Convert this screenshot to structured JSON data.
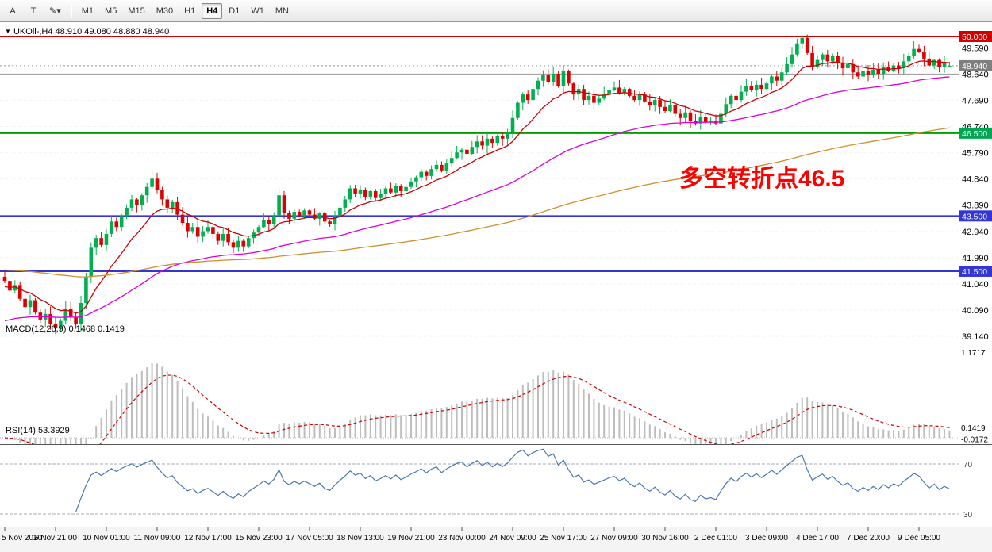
{
  "toolbar": {
    "left_buttons": [
      {
        "label": "A"
      },
      {
        "label": "T"
      },
      {
        "label": "✎▾"
      }
    ],
    "timeframes": [
      {
        "label": "M1",
        "active": false
      },
      {
        "label": "M5",
        "active": false
      },
      {
        "label": "M15",
        "active": false
      },
      {
        "label": "M30",
        "active": false
      },
      {
        "label": "H1",
        "active": false
      },
      {
        "label": "H4",
        "active": true
      },
      {
        "label": "D1",
        "active": false
      },
      {
        "label": "W1",
        "active": false
      },
      {
        "label": "MN",
        "active": false
      }
    ]
  },
  "quote": {
    "display": "UKOil-,H4 48.910 49.080 48.880 48.940"
  },
  "indicators": {
    "macd_label": "MACD(12,26,9) 0.1468 0.1419",
    "rsi_label": "RSI(14) 53.3929"
  },
  "annotation": {
    "text": "多空转折点46.5",
    "color": "#ff0000"
  },
  "price_scale": {
    "labels": [
      49.59,
      48.64,
      47.69,
      46.74,
      45.79,
      44.84,
      43.89,
      42.94,
      41.99,
      41.04,
      40.09,
      39.14
    ],
    "badges": [
      {
        "value": "50.000",
        "price": 50.0,
        "color": "#d40000"
      },
      {
        "value": "48.940",
        "price": 48.94,
        "color": "#7f7f7f"
      },
      {
        "value": "46.500",
        "price": 46.5,
        "color": "#00a651"
      },
      {
        "value": "43.500",
        "price": 43.5,
        "color": "#3535d6"
      },
      {
        "value": "41.500",
        "price": 41.5,
        "color": "#3535d6"
      }
    ]
  },
  "macd_scale": [
    {
      "label": "1.1717",
      "value": 1.1717
    },
    {
      "label": "0.1419",
      "value": 0.1419
    },
    {
      "label": "-0.0172",
      "value": -0.0172
    }
  ],
  "rsi_scale": [
    {
      "label": "70",
      "value": 70
    },
    {
      "label": "30",
      "value": 30
    }
  ],
  "time_scale": [
    "5 Nov 2020",
    "6 Nov 21:00",
    "10 Nov 01:00",
    "11 Nov 09:00",
    "12 Nov 17:00",
    "15 Nov 23:00",
    "17 Nov 05:00",
    "18 Nov 13:00",
    "19 Nov 21:00",
    "23 Nov 00:00",
    "24 Nov 09:00",
    "25 Nov 17:00",
    "27 Nov 09:00",
    "30 Nov 16:00",
    "2 Dec 01:00",
    "3 Dec 09:00",
    "4 Dec 17:00",
    "7 Dec 20:00",
    "9 Dec 05:00"
  ],
  "colors": {
    "candle_up": "#00B050",
    "candle_down": "#DC0000",
    "macd_hist": "#BDBDBD",
    "macd_signal": "#CC0000",
    "rsi_line": "#4A78B0",
    "grid": "#ededed"
  },
  "chart_data": {
    "type": "candlestick+indicators",
    "symbol": "UKOil-",
    "timeframe": "H4",
    "ohlc_current": {
      "open": 48.91,
      "high": 49.08,
      "low": 48.88,
      "close": 48.94
    },
    "price_range": [
      39.115,
      50.0
    ],
    "first_open": 41.3,
    "closes": [
      41.15,
      40.8,
      41.0,
      40.5,
      40.2,
      40.45,
      40.0,
      39.75,
      39.95,
      39.6,
      39.45,
      39.7,
      40.15,
      39.85,
      39.6,
      40.35,
      41.3,
      42.35,
      42.7,
      42.45,
      42.85,
      43.3,
      43.1,
      43.5,
      43.8,
      44.1,
      43.9,
      44.25,
      44.55,
      44.85,
      44.45,
      44.1,
      43.8,
      44.0,
      43.55,
      43.25,
      42.95,
      43.1,
      42.75,
      42.95,
      43.1,
      42.85,
      42.6,
      42.85,
      42.55,
      42.35,
      42.6,
      42.4,
      42.7,
      42.9,
      43.1,
      43.35,
      43.2,
      43.5,
      44.25,
      43.6,
      43.4,
      43.65,
      43.5,
      43.7,
      43.55,
      43.4,
      43.6,
      43.3,
      43.2,
      43.5,
      43.8,
      44.1,
      44.5,
      44.3,
      44.45,
      44.2,
      44.4,
      44.15,
      44.3,
      44.5,
      44.35,
      44.6,
      44.4,
      44.55,
      44.75,
      44.9,
      45.1,
      44.95,
      45.2,
      45.35,
      45.15,
      45.4,
      45.6,
      45.8,
      45.9,
      45.75,
      46.0,
      46.2,
      46.05,
      46.3,
      46.15,
      46.4,
      46.3,
      46.55,
      47.05,
      47.6,
      47.9,
      47.7,
      48.1,
      48.4,
      48.6,
      48.35,
      48.65,
      48.2,
      48.75,
      48.3,
      47.9,
      48.1,
      47.7,
      47.85,
      47.6,
      47.75,
      47.9,
      48.05,
      48.15,
      47.95,
      48.1,
      47.85,
      47.7,
      47.9,
      47.65,
      47.5,
      47.7,
      47.45,
      47.3,
      47.5,
      47.2,
      47.05,
      47.25,
      46.95,
      46.85,
      47.1,
      46.9,
      46.95,
      46.85,
      47.2,
      47.55,
      47.85,
      47.7,
      48.0,
      48.2,
      48.05,
      48.25,
      48.1,
      48.3,
      48.55,
      48.4,
      48.7,
      49.0,
      49.35,
      49.75,
      49.95,
      49.4,
      48.9,
      49.15,
      49.35,
      49.1,
      49.3,
      49.05,
      48.85,
      49.0,
      48.7,
      48.55,
      48.75,
      48.6,
      48.8,
      48.65,
      48.9,
      48.75,
      48.95,
      48.85,
      49.1,
      49.3,
      49.55,
      49.45,
      49.2,
      48.95,
      49.15,
      48.9,
      49.05,
      48.94
    ],
    "hlines": [
      {
        "price": 50.0,
        "color": "#cc0000",
        "width": 2
      },
      {
        "price": 48.64,
        "color": "#9a9a9a",
        "width": 1
      },
      {
        "price": 46.5,
        "color": "#00a000",
        "width": 2
      },
      {
        "price": 43.5,
        "color": "#3535d6",
        "width": 2
      },
      {
        "price": 41.5,
        "color": "#3535d6",
        "width": 2
      }
    ],
    "mas": [
      {
        "period": 12,
        "color": "#cc0000",
        "seed": 40.9
      },
      {
        "period": 55,
        "color": "#dd00dd",
        "seed": 39.65
      },
      {
        "period": 160,
        "color": "#cf8f2e",
        "seed": 41.55
      }
    ],
    "macd": {
      "fast": 12,
      "slow": 26,
      "signal": 9,
      "current_main": 0.1468,
      "current_signal": 0.1419,
      "max": 1.1717,
      "min": -0.0172
    },
    "rsi": {
      "period": 14,
      "current": 53.3929,
      "levels": [
        70,
        30
      ]
    }
  }
}
